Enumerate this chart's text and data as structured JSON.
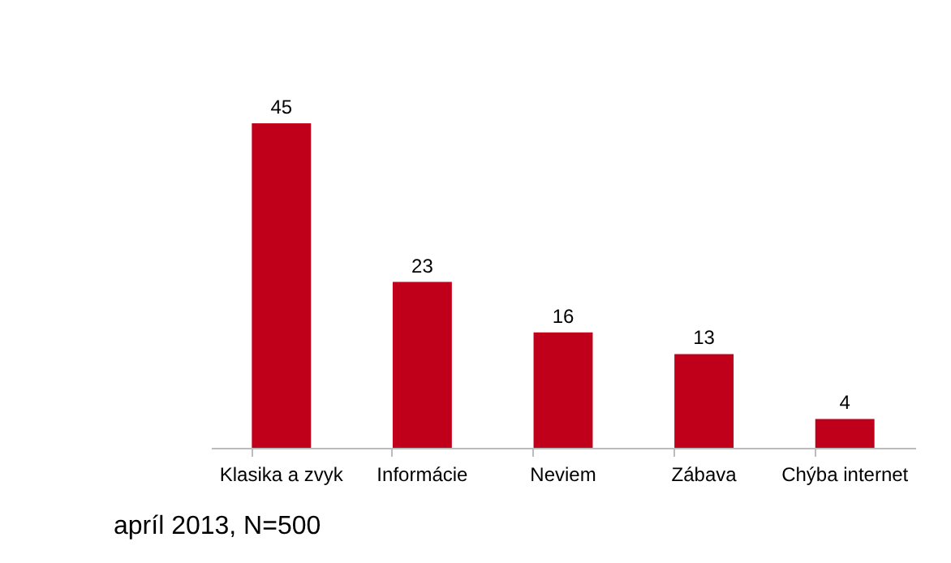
{
  "chart_data": {
    "type": "bar",
    "categories": [
      "Klasika a zvyk",
      "Informácie",
      "Neviem",
      "Zábava",
      "Chýba internet"
    ],
    "values": [
      45,
      23,
      16,
      13,
      4
    ],
    "color": "#c0001a",
    "data_labels": true,
    "grid": false,
    "tick_labels": "x",
    "annotations": [
      "apríl 2013, N=500"
    ]
  }
}
